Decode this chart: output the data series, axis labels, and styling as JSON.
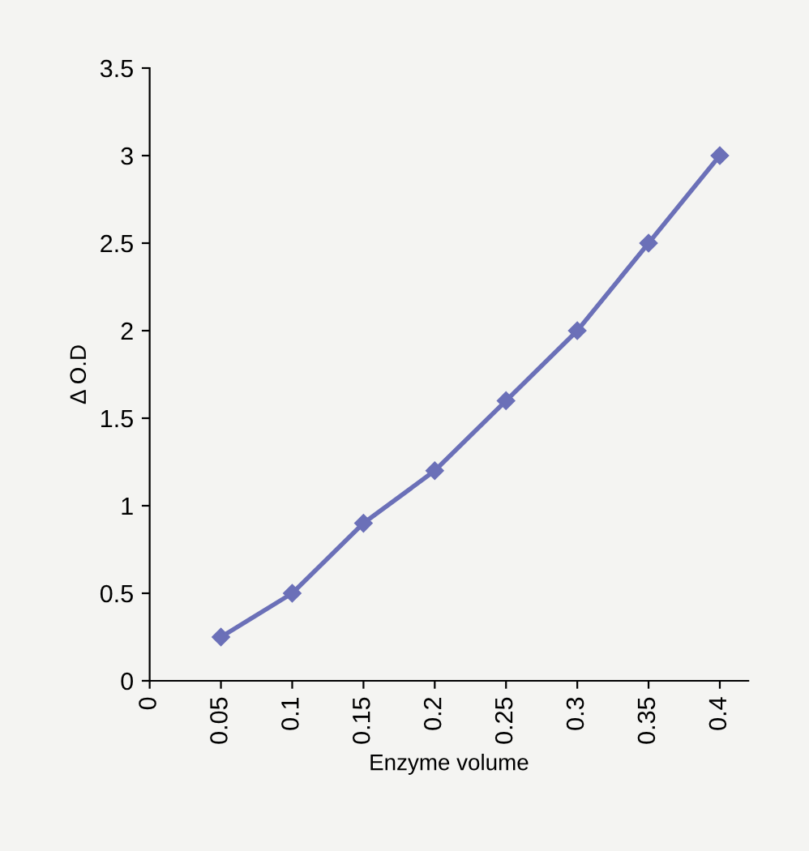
{
  "chart_data": {
    "type": "line",
    "xlabel": "Enzyme volume",
    "ylabel": "Δ O.D",
    "x": [
      0.05,
      0.1,
      0.15,
      0.2,
      0.25,
      0.3,
      0.35,
      0.4
    ],
    "series": [
      {
        "color": "#6b70b8",
        "values": [
          0.25,
          0.5,
          0.9,
          1.2,
          1.6,
          2.0,
          2.5,
          3.0
        ]
      }
    ],
    "xlim": [
      0,
      0.42
    ],
    "xticks": [
      0,
      0.05,
      0.1,
      0.15,
      0.2,
      0.25,
      0.3,
      0.35,
      0.4
    ],
    "ylim": [
      0,
      3.5
    ],
    "yticks": [
      0,
      0.5,
      1,
      1.5,
      2,
      2.5,
      3,
      3.5
    ],
    "marker": "diamond",
    "line_style": "solid",
    "grid": false,
    "legend": false
  }
}
